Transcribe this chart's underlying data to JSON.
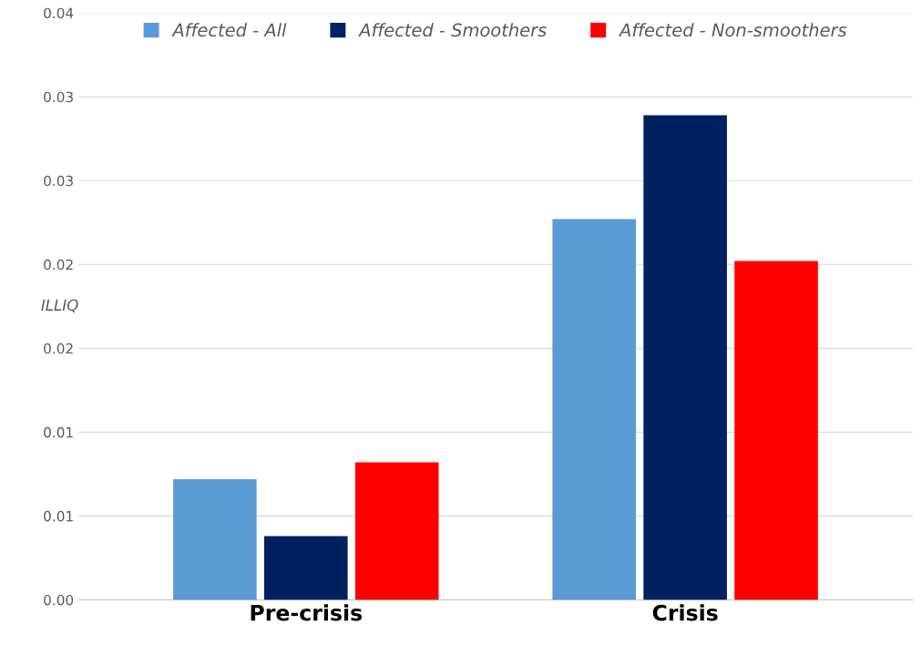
{
  "chart_data": {
    "type": "bar",
    "ylabel": "ILLIQ",
    "categories": [
      "Pre-crisis",
      "Crisis"
    ],
    "series": [
      {
        "name": "Affected - All",
        "color": "#5b9bd5",
        "values": [
          0.0072,
          0.0227
        ]
      },
      {
        "name": "Affected - Smoothers",
        "color": "#002060",
        "values": [
          0.0038,
          0.0289
        ]
      },
      {
        "name": "Affected - Non-smoothers",
        "color": "#ff0000",
        "values": [
          0.0082,
          0.0202
        ]
      }
    ],
    "ylim": [
      0,
      0.035
    ],
    "yticks": [
      {
        "value": 0,
        "label": "0.00"
      },
      {
        "value": 0.005,
        "label": "0.01"
      },
      {
        "value": 0.01,
        "label": "0.01"
      },
      {
        "value": 0.015,
        "label": "0.02"
      },
      {
        "value": 0.02,
        "label": "0.02"
      },
      {
        "value": 0.025,
        "label": "0.03"
      },
      {
        "value": 0.03,
        "label": "0.03"
      },
      {
        "value": 0.035,
        "label": "0.04"
      }
    ],
    "grid": "y",
    "legend": "top"
  }
}
